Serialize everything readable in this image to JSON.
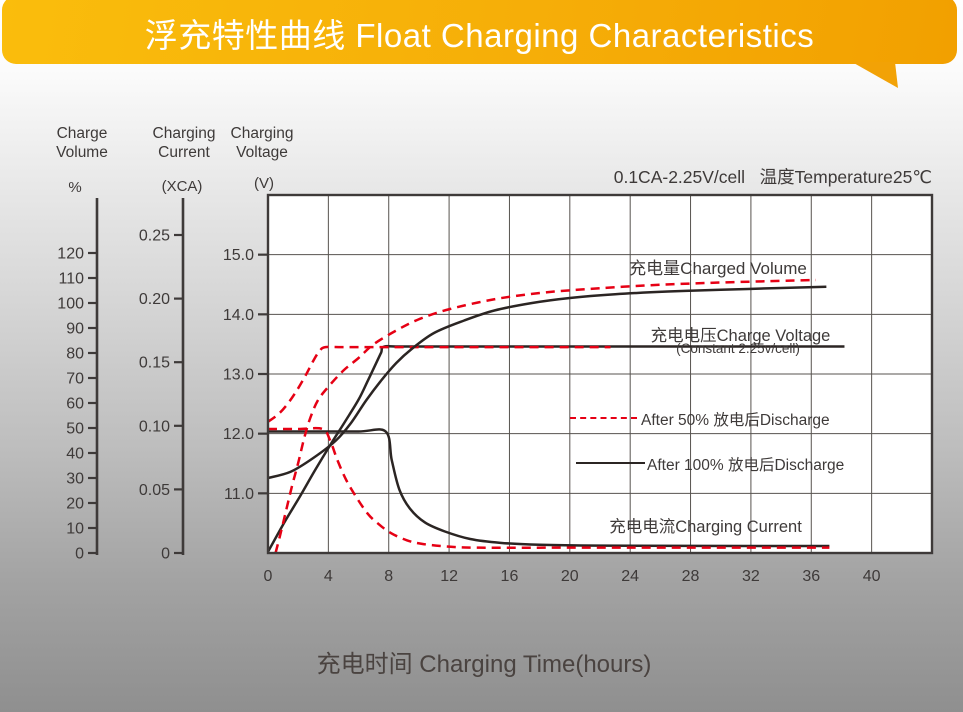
{
  "banner": {
    "title": "浮充特性曲线 Float Charging Characteristics"
  },
  "condition": {
    "text": "0.1CA-2.25V/cell   温度Temperature25℃"
  },
  "axis_headers": {
    "charge_volume": {
      "line1": "Charge",
      "line2": "Volume",
      "unit": "%"
    },
    "charging_current": {
      "line1": "Charging",
      "line2": "Current",
      "unit": "(XCA)"
    },
    "charging_voltage": {
      "line1": "Charging",
      "line2": "Voltage",
      "unit": "(V)"
    }
  },
  "x_axis_title": "充电时间 Charging Time(hours)",
  "colors": {
    "banner_orange_light": "#FABD0C",
    "banner_orange_dark": "#F2A000",
    "red_curve": "#E60014",
    "black_curve": "#2B2523",
    "text": "#3E3A39",
    "grid": "#57534F",
    "plot_bg": "#FFFFFF"
  },
  "chart_data": {
    "type": "line",
    "title": "浮充特性曲线 Float Charging Characteristics",
    "condition": "0.1CA-2.25V/cell 温度Temperature25℃",
    "xlabel": "充电时间 Charging Time(hours)",
    "x_range": [
      0,
      44
    ],
    "x_ticks": [
      0,
      4,
      8,
      12,
      16,
      20,
      24,
      28,
      32,
      36,
      40
    ],
    "grid": "on",
    "axes": {
      "voltage": {
        "title": "Charging Voltage",
        "unit": "(V)",
        "range": [
          10,
          16
        ],
        "tick_values": [
          11,
          12,
          13,
          14,
          15
        ],
        "tick_labels": [
          "11.0",
          "12.0",
          "13.0",
          "14.0",
          "15.0"
        ]
      },
      "percent": {
        "title": "Charge Volume",
        "unit": "%",
        "range": [
          0,
          120
        ],
        "tick_values": [
          0,
          10,
          20,
          30,
          40,
          50,
          60,
          70,
          80,
          90,
          100,
          110,
          120
        ],
        "tick_labels": [
          "0",
          "10",
          "20",
          "30",
          "40",
          "50",
          "60",
          "70",
          "80",
          "90",
          "100",
          "110",
          "120"
        ]
      },
      "current": {
        "title": "Charging Current",
        "unit": "(XCA)",
        "range": [
          0,
          0.25
        ],
        "tick_values": [
          0,
          0.05,
          0.1,
          0.15,
          0.2,
          0.25
        ],
        "tick_labels": [
          "0",
          "0.05",
          "0.10",
          "0.15",
          "0.20",
          "0.25"
        ]
      }
    },
    "series": [
      {
        "id": "current_after_100",
        "name": "充电电流 Charging Current (After 100% 放电后Discharge)",
        "axis": "current",
        "color": "black",
        "line": "solid",
        "points": [
          [
            0,
            0.0955
          ],
          [
            3,
            0.0955
          ],
          [
            6,
            0.0955
          ],
          [
            7.8,
            0.0955
          ],
          [
            8.2,
            0.073
          ],
          [
            8.7,
            0.05
          ],
          [
            9.4,
            0.035
          ],
          [
            10.4,
            0.024
          ],
          [
            11.7,
            0.017
          ],
          [
            13.4,
            0.011
          ],
          [
            15.4,
            0.008
          ],
          [
            18,
            0.0065
          ],
          [
            22,
            0.0058
          ],
          [
            28,
            0.0056
          ],
          [
            37.2,
            0.0055
          ]
        ]
      },
      {
        "id": "current_after_50",
        "name": "充电电流 Charging Current (After 50% 放电后Discharge)",
        "axis": "current",
        "color": "red",
        "line": "dashed",
        "points": [
          [
            0,
            0.0975
          ],
          [
            2,
            0.0975
          ],
          [
            3.6,
            0.0975
          ],
          [
            4.1,
            0.089
          ],
          [
            4.6,
            0.073
          ],
          [
            5.2,
            0.057
          ],
          [
            5.9,
            0.043
          ],
          [
            6.6,
            0.031
          ],
          [
            7.2,
            0.024
          ],
          [
            8.1,
            0.016
          ],
          [
            9.2,
            0.01
          ],
          [
            10.3,
            0.007
          ],
          [
            12,
            0.005
          ],
          [
            14,
            0.0042
          ],
          [
            20,
            0.0042
          ],
          [
            28,
            0.0042
          ],
          [
            37.2,
            0.0042
          ]
        ]
      },
      {
        "id": "voltage_after_100",
        "name": "充电电压 Charge Voltage (After 100% 放电后Discharge)",
        "axis": "voltage",
        "color": "black",
        "line": "solid",
        "points": [
          [
            0,
            10.02
          ],
          [
            1.1,
            10.52
          ],
          [
            2.1,
            10.94
          ],
          [
            3.1,
            11.38
          ],
          [
            4.1,
            11.8
          ],
          [
            5.1,
            12.2
          ],
          [
            6,
            12.57
          ],
          [
            6.6,
            12.88
          ],
          [
            7.2,
            13.2
          ],
          [
            7.5,
            13.36
          ],
          [
            7.7,
            13.46
          ],
          [
            9,
            13.46
          ],
          [
            15,
            13.46
          ],
          [
            25,
            13.46
          ],
          [
            38.2,
            13.46
          ]
        ]
      },
      {
        "id": "voltage_after_50",
        "name": "充电电压 Charge Voltage (After 50% 放电后Discharge)",
        "axis": "voltage",
        "color": "red",
        "line": "dashed",
        "points": [
          [
            0,
            12.2
          ],
          [
            0.7,
            12.33
          ],
          [
            1.3,
            12.5
          ],
          [
            1.9,
            12.72
          ],
          [
            2.5,
            12.98
          ],
          [
            3,
            13.22
          ],
          [
            3.4,
            13.38
          ],
          [
            3.8,
            13.45
          ],
          [
            5,
            13.45
          ],
          [
            10,
            13.45
          ],
          [
            16,
            13.45
          ],
          [
            22.7,
            13.45
          ]
        ]
      },
      {
        "id": "volume_after_100",
        "name": "充电量 Charged Volume (After 100% 放电后Discharge)",
        "axis": "percent",
        "color": "black",
        "line": "solid",
        "points": [
          [
            0,
            30
          ],
          [
            1.5,
            32.5
          ],
          [
            3,
            38
          ],
          [
            4.5,
            45
          ],
          [
            5.5,
            52
          ],
          [
            6.5,
            61
          ],
          [
            7.5,
            69
          ],
          [
            8.5,
            76
          ],
          [
            9.5,
            81.5
          ],
          [
            11,
            88
          ],
          [
            13,
            93
          ],
          [
            15,
            97
          ],
          [
            17.5,
            100
          ],
          [
            20,
            102
          ],
          [
            23,
            103.5
          ],
          [
            26.5,
            104.6
          ],
          [
            30,
            105.3
          ],
          [
            34,
            106
          ],
          [
            37,
            106.5
          ]
        ]
      },
      {
        "id": "volume_after_50",
        "name": "充电量 Charged Volume (After 50% 放电后Discharge)",
        "axis": "percent",
        "color": "red",
        "line": "dashed",
        "points": [
          [
            0.5,
            0
          ],
          [
            0.8,
            7
          ],
          [
            1.2,
            17
          ],
          [
            1.6,
            27
          ],
          [
            2,
            36
          ],
          [
            2.4,
            46
          ],
          [
            2.8,
            54
          ],
          [
            3.3,
            61
          ],
          [
            4,
            66.5
          ],
          [
            5,
            73
          ],
          [
            6,
            78
          ],
          [
            7,
            83.5
          ],
          [
            8.5,
            89
          ],
          [
            10,
            93.5
          ],
          [
            12,
            97.5
          ],
          [
            15,
            101.5
          ],
          [
            18,
            104
          ],
          [
            21,
            105.5
          ],
          [
            25,
            107
          ],
          [
            29,
            108
          ],
          [
            33,
            108.7
          ],
          [
            36.3,
            109.2
          ]
        ]
      }
    ],
    "annotations": [
      {
        "id": "charged_volume",
        "text": "充电量Charged Volume"
      },
      {
        "id": "charge_voltage",
        "text": "充电电压Charge Voltage",
        "subtext": "(Constant 2.25v/cell)"
      },
      {
        "id": "charging_current",
        "text": "充电电流Charging Current"
      }
    ],
    "legend": [
      {
        "style": "dashed-red",
        "label": "After 50% 放电后Discharge"
      },
      {
        "style": "solid-black",
        "label": "After 100% 放电后Discharge"
      }
    ],
    "legend_position": "inside-right"
  }
}
